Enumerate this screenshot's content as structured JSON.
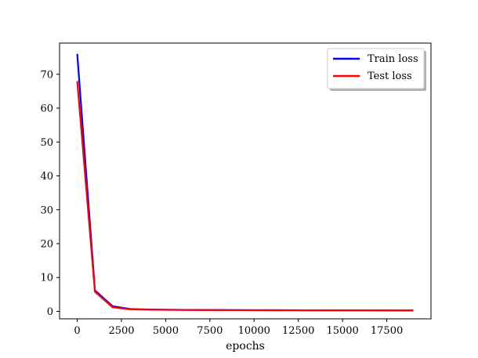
{
  "chart_data": {
    "type": "line",
    "title": "",
    "xlabel": "epochs",
    "ylabel": "",
    "xlim": [
      -1000,
      20000
    ],
    "ylim": [
      -2.2,
      79.2
    ],
    "xticks": [
      0,
      2500,
      5000,
      7500,
      10000,
      12500,
      15000,
      17500
    ],
    "xtick_labels": [
      "0",
      "2500",
      "5000",
      "7500",
      "10000",
      "12500",
      "15000",
      "17500"
    ],
    "yticks": [
      0,
      10,
      20,
      30,
      40,
      50,
      60,
      70
    ],
    "ytick_labels": [
      "0",
      "10",
      "20",
      "30",
      "40",
      "50",
      "60",
      "70"
    ],
    "grid": false,
    "legend_position": "top-right",
    "series": [
      {
        "name": "Train loss",
        "color": "#0000ff",
        "x": [
          0,
          1000,
          2000,
          3000,
          4000,
          5000,
          6000,
          7000,
          8000,
          9000,
          10000,
          11000,
          12000,
          13000,
          14000,
          15000,
          16000,
          17000,
          18000,
          19000
        ],
        "y": [
          76.0,
          6.2,
          1.5,
          0.7,
          0.55,
          0.5,
          0.45,
          0.42,
          0.4,
          0.38,
          0.36,
          0.35,
          0.34,
          0.33,
          0.32,
          0.31,
          0.3,
          0.3,
          0.29,
          0.28
        ]
      },
      {
        "name": "Test loss",
        "color": "#ff0000",
        "x": [
          0,
          1000,
          2000,
          3000,
          4000,
          5000,
          6000,
          7000,
          8000,
          9000,
          10000,
          11000,
          12000,
          13000,
          14000,
          15000,
          16000,
          17000,
          18000,
          19000
        ],
        "y": [
          68.0,
          5.8,
          1.2,
          0.6,
          0.5,
          0.45,
          0.42,
          0.4,
          0.38,
          0.36,
          0.35,
          0.34,
          0.33,
          0.32,
          0.31,
          0.3,
          0.3,
          0.29,
          0.28,
          0.28
        ]
      }
    ]
  }
}
